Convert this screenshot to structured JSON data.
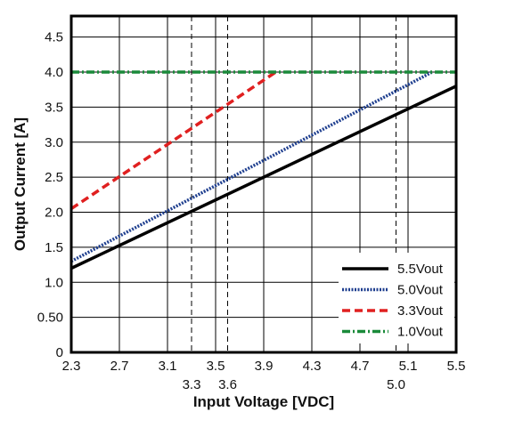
{
  "chart_data": {
    "type": "line",
    "title": "",
    "xlabel": "Input Voltage [VDC]",
    "ylabel": "Output Current [A]",
    "xlim": [
      2.3,
      5.5
    ],
    "ylim": [
      0,
      4.8
    ],
    "grid": true,
    "legend_position": "bottom-right",
    "x_ticks": [
      {
        "value": 2.3,
        "label": "2.3"
      },
      {
        "value": 2.7,
        "label": "2.7"
      },
      {
        "value": 3.1,
        "label": "3.1"
      },
      {
        "value": 3.5,
        "label": "3.5"
      },
      {
        "value": 3.9,
        "label": "3.9"
      },
      {
        "value": 4.3,
        "label": "4.3"
      },
      {
        "value": 4.7,
        "label": "4.7"
      },
      {
        "value": 5.1,
        "label": "5.1"
      },
      {
        "value": 5.5,
        "label": "5.5"
      }
    ],
    "y_ticks": [
      {
        "value": 0,
        "label": "0"
      },
      {
        "value": 0.5,
        "label": "0.50"
      },
      {
        "value": 1.0,
        "label": "1.0"
      },
      {
        "value": 1.5,
        "label": "1.5"
      },
      {
        "value": 2.0,
        "label": "2.0"
      },
      {
        "value": 2.5,
        "label": "2.5"
      },
      {
        "value": 3.0,
        "label": "3.0"
      },
      {
        "value": 3.5,
        "label": "3.5"
      },
      {
        "value": 4.0,
        "label": "4.0"
      },
      {
        "value": 4.5,
        "label": "4.5"
      }
    ],
    "reference_lines": [
      {
        "value": 3.3,
        "label": "3.3"
      },
      {
        "value": 3.6,
        "label": "3.6"
      },
      {
        "value": 5.0,
        "label": "5.0"
      }
    ],
    "series": [
      {
        "name": "5.5Vout",
        "color": "#000000",
        "style": "solid",
        "x": [
          2.3,
          5.5
        ],
        "y": [
          1.2,
          3.8
        ]
      },
      {
        "name": "5.0Vout",
        "color": "#1f3f8f",
        "style": "dotted",
        "x": [
          2.3,
          5.3
        ],
        "y": [
          1.3,
          4.0
        ]
      },
      {
        "name": "3.3Vout",
        "color": "#e02020",
        "style": "dashed",
        "x": [
          2.3,
          4.0
        ],
        "y": [
          2.05,
          4.0
        ]
      },
      {
        "name": "1.0Vout",
        "color": "#1a8a3a",
        "style": "dashdot",
        "x": [
          2.3,
          5.5
        ],
        "y": [
          4.0,
          4.0
        ]
      }
    ]
  }
}
